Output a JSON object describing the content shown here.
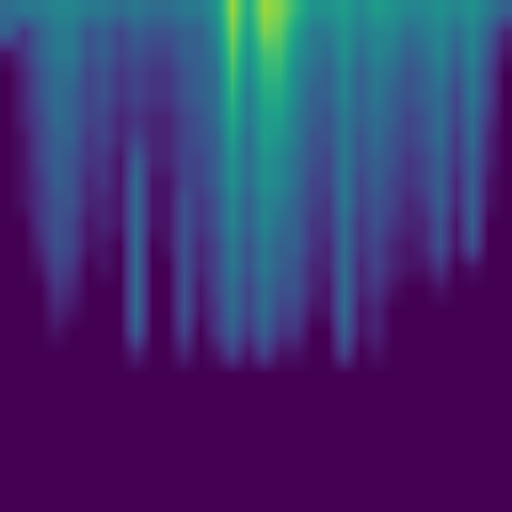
{
  "chart_data": {
    "type": "heatmap",
    "color": "Viridis",
    "tick_labels": false,
    "xlim": [
      -0.5,
      31.5
    ],
    "ylim": [
      23.5,
      -0.5
    ],
    "zlim": [
      0,
      1
    ],
    "cells": [
      [
        0.35,
        0.4,
        0.4,
        0.45,
        0.45,
        0.4,
        0.4,
        0.35,
        0.4,
        0.35,
        0.35,
        0.4,
        0.4,
        0.5,
        0.85,
        0.6,
        0.85,
        0.8,
        0.65,
        0.5,
        0.5,
        0.55,
        0.45,
        0.55,
        0.5,
        0.45,
        0.45,
        0.5,
        0.45,
        0.5,
        0.4,
        0.3
      ],
      [
        0.3,
        0.15,
        0.3,
        0.4,
        0.4,
        0.25,
        0.3,
        0.2,
        0.3,
        0.25,
        0.25,
        0.3,
        0.3,
        0.45,
        0.8,
        0.55,
        0.8,
        0.75,
        0.55,
        0.4,
        0.4,
        0.5,
        0.4,
        0.45,
        0.45,
        0.35,
        0.4,
        0.45,
        0.35,
        0.45,
        0.3,
        0.1
      ],
      [
        0.05,
        0.15,
        0.3,
        0.4,
        0.4,
        0.25,
        0.3,
        0.2,
        0.25,
        0.2,
        0.2,
        0.3,
        0.3,
        0.4,
        0.75,
        0.5,
        0.7,
        0.7,
        0.5,
        0.4,
        0.35,
        0.5,
        0.35,
        0.45,
        0.4,
        0.3,
        0.35,
        0.45,
        0.3,
        0.45,
        0.25,
        0.05
      ],
      [
        0,
        0.1,
        0.25,
        0.35,
        0.35,
        0.2,
        0.25,
        0.15,
        0.2,
        0.15,
        0.15,
        0.25,
        0.3,
        0.35,
        0.7,
        0.45,
        0.65,
        0.65,
        0.45,
        0.35,
        0.3,
        0.45,
        0.3,
        0.4,
        0.35,
        0.25,
        0.3,
        0.4,
        0.25,
        0.4,
        0.2,
        0
      ],
      [
        0,
        0.1,
        0.25,
        0.35,
        0.3,
        0.2,
        0.25,
        0.15,
        0.2,
        0.15,
        0.15,
        0.25,
        0.3,
        0.35,
        0.65,
        0.4,
        0.6,
        0.6,
        0.45,
        0.3,
        0.3,
        0.45,
        0.3,
        0.4,
        0.3,
        0.25,
        0.3,
        0.35,
        0.2,
        0.4,
        0.2,
        0
      ],
      [
        0,
        0.1,
        0.2,
        0.35,
        0.3,
        0.2,
        0.2,
        0.1,
        0.15,
        0.1,
        0.1,
        0.2,
        0.25,
        0.35,
        0.6,
        0.4,
        0.55,
        0.55,
        0.4,
        0.3,
        0.25,
        0.4,
        0.3,
        0.35,
        0.3,
        0.2,
        0.25,
        0.35,
        0.2,
        0.35,
        0.15,
        0
      ],
      [
        0,
        0.05,
        0.2,
        0.3,
        0.3,
        0.15,
        0.2,
        0.1,
        0.2,
        0.1,
        0.1,
        0.2,
        0.25,
        0.3,
        0.55,
        0.35,
        0.55,
        0.5,
        0.4,
        0.25,
        0.25,
        0.4,
        0.25,
        0.35,
        0.25,
        0.2,
        0.25,
        0.35,
        0.15,
        0.35,
        0.1,
        0
      ],
      [
        0,
        0.05,
        0.2,
        0.3,
        0.25,
        0.15,
        0.15,
        0.05,
        0.3,
        0.1,
        0.1,
        0.2,
        0.2,
        0.3,
        0.5,
        0.35,
        0.5,
        0.45,
        0.35,
        0.25,
        0.2,
        0.4,
        0.25,
        0.3,
        0.25,
        0.15,
        0.2,
        0.3,
        0.15,
        0.3,
        0.1,
        0
      ],
      [
        0,
        0.05,
        0.15,
        0.3,
        0.25,
        0.1,
        0.15,
        0.05,
        0.35,
        0.05,
        0.05,
        0.2,
        0.2,
        0.3,
        0.5,
        0.35,
        0.5,
        0.45,
        0.35,
        0.2,
        0.2,
        0.4,
        0.2,
        0.3,
        0.2,
        0.15,
        0.2,
        0.3,
        0.1,
        0.3,
        0.05,
        0
      ],
      [
        0,
        0.05,
        0.15,
        0.25,
        0.25,
        0.1,
        0.1,
        0.05,
        0.35,
        0.05,
        0.05,
        0.25,
        0.15,
        0.25,
        0.45,
        0.3,
        0.45,
        0.4,
        0.3,
        0.2,
        0.15,
        0.4,
        0.2,
        0.25,
        0.2,
        0.1,
        0.15,
        0.3,
        0.1,
        0.3,
        0.05,
        0
      ],
      [
        0,
        0,
        0.15,
        0.25,
        0.2,
        0.05,
        0.1,
        0.05,
        0.35,
        0.05,
        0.05,
        0.25,
        0.15,
        0.25,
        0.45,
        0.3,
        0.45,
        0.35,
        0.3,
        0.15,
        0.15,
        0.35,
        0.15,
        0.25,
        0.15,
        0.1,
        0.1,
        0.25,
        0.05,
        0.3,
        0,
        0
      ],
      [
        0,
        0,
        0.1,
        0.25,
        0.2,
        0.05,
        0.05,
        0,
        0.35,
        0,
        0.05,
        0.25,
        0.1,
        0.2,
        0.4,
        0.25,
        0.4,
        0.3,
        0.3,
        0.15,
        0.1,
        0.35,
        0.15,
        0.2,
        0.1,
        0.05,
        0.1,
        0.25,
        0.05,
        0.25,
        0,
        0
      ],
      [
        0,
        0,
        0.05,
        0.2,
        0.15,
        0,
        0.05,
        0,
        0.35,
        0,
        0,
        0.25,
        0.1,
        0.2,
        0.4,
        0.25,
        0.4,
        0.3,
        0.25,
        0.1,
        0.1,
        0.35,
        0.1,
        0.2,
        0.1,
        0.05,
        0.05,
        0.15,
        0,
        0.05,
        0,
        0
      ],
      [
        0,
        0,
        0,
        0.15,
        0.1,
        0,
        0,
        0,
        0.35,
        0,
        0,
        0.25,
        0.05,
        0.2,
        0.35,
        0.2,
        0.35,
        0.25,
        0.25,
        0.1,
        0.05,
        0.35,
        0.1,
        0.15,
        0.05,
        0,
        0,
        0.05,
        0,
        0,
        0,
        0
      ],
      [
        0,
        0,
        0,
        0.1,
        0.05,
        0,
        0,
        0,
        0.35,
        0,
        0,
        0.25,
        0.05,
        0.15,
        0.35,
        0.2,
        0.35,
        0.2,
        0.2,
        0.05,
        0.05,
        0.35,
        0.05,
        0.1,
        0,
        0,
        0,
        0,
        0,
        0,
        0,
        0
      ],
      [
        0,
        0,
        0,
        0.05,
        0,
        0,
        0,
        0,
        0.3,
        0,
        0,
        0.2,
        0,
        0.15,
        0.3,
        0.15,
        0.3,
        0.15,
        0.15,
        0,
        0,
        0.3,
        0.05,
        0.1,
        0,
        0,
        0,
        0,
        0,
        0,
        0,
        0
      ],
      [
        0,
        0,
        0,
        0,
        0,
        0,
        0,
        0,
        0.1,
        0,
        0,
        0.1,
        0,
        0.05,
        0.2,
        0.05,
        0.2,
        0.05,
        0.05,
        0,
        0,
        0.2,
        0,
        0.05,
        0,
        0,
        0,
        0,
        0,
        0,
        0,
        0
      ],
      [
        0,
        0,
        0,
        0,
        0,
        0,
        0,
        0,
        0,
        0,
        0,
        0,
        0,
        0,
        0,
        0,
        0,
        0,
        0,
        0,
        0,
        0,
        0,
        0,
        0,
        0,
        0,
        0,
        0,
        0,
        0,
        0
      ],
      [
        0,
        0,
        0,
        0,
        0,
        0,
        0,
        0,
        0,
        0,
        0,
        0,
        0,
        0,
        0,
        0,
        0,
        0,
        0,
        0,
        0,
        0,
        0,
        0,
        0,
        0,
        0,
        0,
        0,
        0,
        0,
        0
      ],
      [
        0,
        0,
        0,
        0,
        0,
        0,
        0,
        0,
        0,
        0,
        0,
        0,
        0,
        0,
        0,
        0,
        0,
        0,
        0,
        0,
        0,
        0,
        0,
        0,
        0,
        0,
        0,
        0,
        0,
        0,
        0,
        0
      ],
      [
        0,
        0,
        0,
        0,
        0,
        0,
        0,
        0,
        0,
        0,
        0,
        0,
        0,
        0,
        0,
        0,
        0,
        0,
        0,
        0,
        0,
        0,
        0,
        0,
        0,
        0,
        0,
        0,
        0,
        0,
        0,
        0
      ],
      [
        0,
        0,
        0,
        0,
        0,
        0,
        0,
        0,
        0,
        0,
        0,
        0,
        0,
        0,
        0,
        0,
        0,
        0,
        0,
        0,
        0,
        0,
        0,
        0,
        0,
        0,
        0,
        0,
        0,
        0,
        0,
        0
      ],
      [
        0,
        0,
        0,
        0,
        0,
        0,
        0,
        0,
        0,
        0,
        0,
        0,
        0,
        0,
        0,
        0,
        0,
        0,
        0,
        0,
        0,
        0,
        0,
        0,
        0,
        0,
        0,
        0,
        0,
        0,
        0,
        0
      ],
      [
        0,
        0,
        0,
        0,
        0,
        0,
        0,
        0,
        0,
        0,
        0,
        0,
        0,
        0,
        0,
        0,
        0,
        0,
        0,
        0,
        0,
        0,
        0,
        0,
        0,
        0,
        0,
        0,
        0,
        0,
        0,
        0
      ]
    ]
  }
}
